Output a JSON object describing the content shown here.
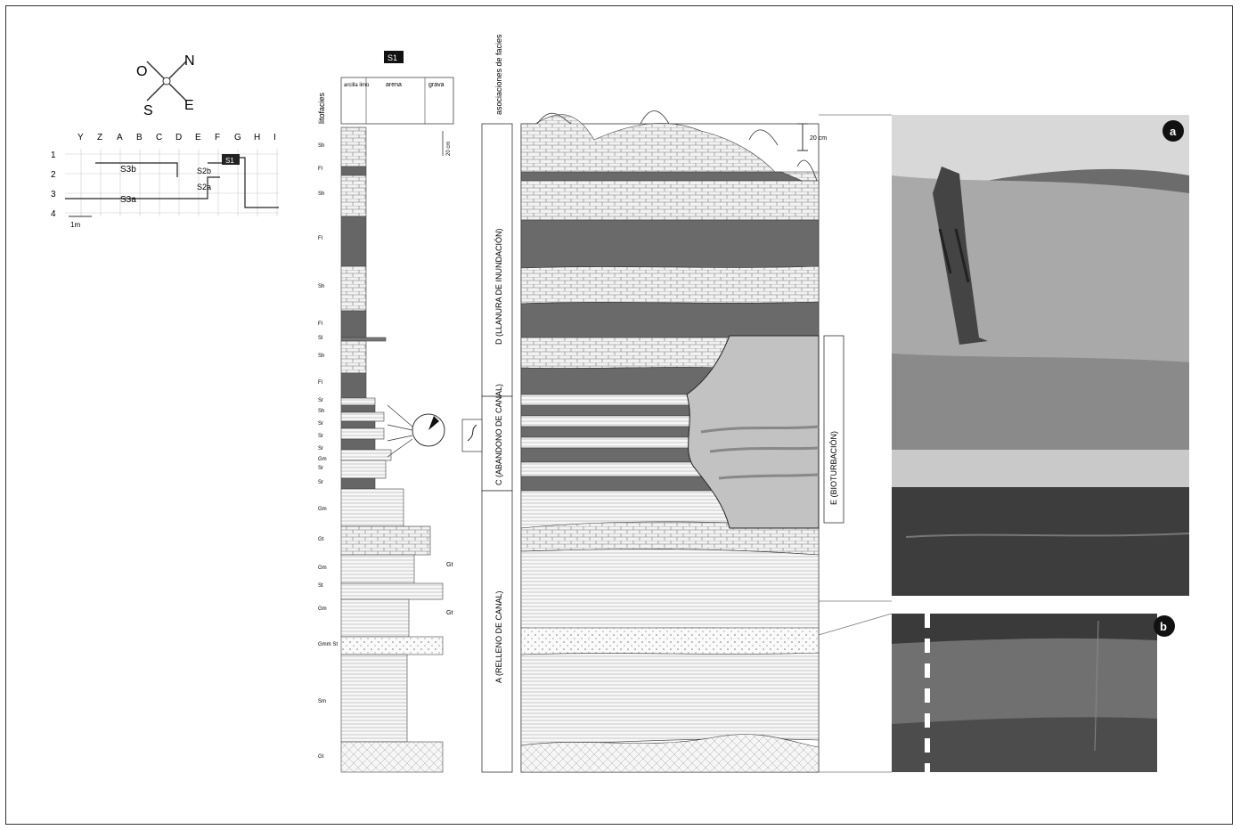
{
  "compass": {
    "n": "N",
    "s": "S",
    "e": "E",
    "o": "O"
  },
  "grid": {
    "columns": [
      "Y",
      "Z",
      "A",
      "B",
      "C",
      "D",
      "E",
      "F",
      "G",
      "H",
      "I"
    ],
    "rows": [
      "1",
      "2",
      "3",
      "4"
    ],
    "scale": "1m",
    "labels": [
      "S3b",
      "S2b",
      "S3a",
      "S2a",
      "S1"
    ]
  },
  "log": {
    "badge": "S1",
    "litho_heading": "litofacies",
    "header_groups": [
      "arcilla limo",
      "arena",
      "grava"
    ],
    "scale_label": "20 cm",
    "facies_codes": [
      "Sh",
      "Fl",
      "Sh",
      "Fl",
      "Sh",
      "Fl",
      "Sl",
      "Sh",
      "Fl",
      "Sr",
      "Sh",
      "Sr",
      "Sr",
      "Sr",
      "Gm",
      "Sr",
      "Sr",
      "Gm",
      "Gt",
      "Gm",
      "St",
      "Gm",
      "Gmm St",
      "Sm",
      "Gt"
    ],
    "gt_labels": [
      "Gt",
      "Gt"
    ]
  },
  "associations": {
    "heading": "asociaciones de facies",
    "items": [
      "D (LLANURA DE INUNDACIÓN)",
      "C (ABANDONO DE CANAL)",
      "A (RELLENO DE CANAL)"
    ],
    "e_label": "E (BIOTURBACIÓN)",
    "scale": "20 cm"
  },
  "photos": {
    "a": "a",
    "b": "b"
  }
}
